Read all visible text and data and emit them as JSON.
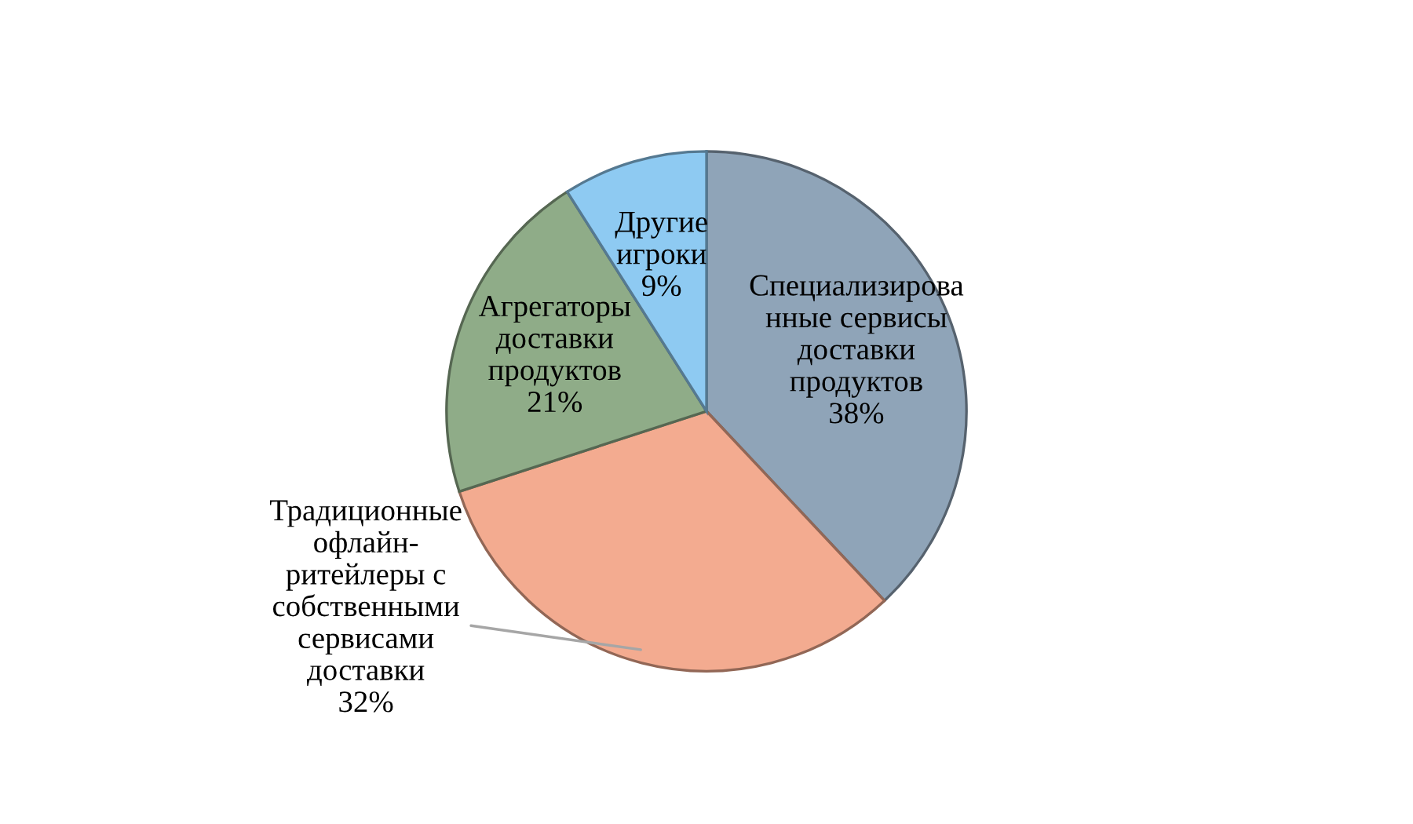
{
  "chart_data": {
    "type": "pie",
    "categories": [
      "Специализирова\nнные сервисы\nдоставки\nпродуктов",
      "Традиционные\nофлайн-\nритейлеры с\nсобственными\nсервисами\nдоставки",
      "Агрегаторы\nдоставки\nпродуктов",
      "Другие\nигроки"
    ],
    "values": [
      38,
      32,
      21,
      9
    ],
    "value_labels": [
      "38%",
      "32%",
      "21%",
      "9%"
    ],
    "colors": [
      "#8fa4b8",
      "#f3ab90",
      "#8fac88",
      "#8ecaf2"
    ],
    "legend": false
  }
}
